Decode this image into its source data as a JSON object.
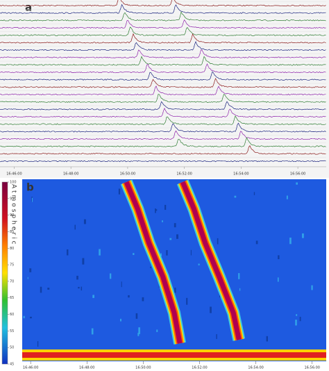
{
  "chart_data": [
    {
      "type": "line",
      "label": "a",
      "xlim": [
        1005.5,
        1017.0
      ],
      "xticks": [
        {
          "value": 1006,
          "label": "16:46:00"
        },
        {
          "value": 1008,
          "label": "16:48:00"
        },
        {
          "value": 1010,
          "label": "16:50:00"
        },
        {
          "value": 1012,
          "label": "16:52:00"
        },
        {
          "value": 1014,
          "label": "16:54:00"
        },
        {
          "value": 1016,
          "label": "16:56:00"
        }
      ],
      "series": [
        {
          "color": "#8b1a1a",
          "peaks": [
            1009.7,
            1011.6
          ]
        },
        {
          "color": "#1a237e",
          "peaks": [
            1009.8,
            1011.7
          ]
        },
        {
          "color": "#2e7d32",
          "peaks": [
            1009.9,
            1011.9
          ]
        },
        {
          "color": "#8e24aa",
          "peaks": [
            1010.0,
            1012.0
          ]
        },
        {
          "color": "#2e7d32",
          "peaks": [
            1010.1,
            1012.1
          ]
        },
        {
          "color": "#8b1a1a",
          "peaks": [
            1010.2,
            1012.3
          ]
        },
        {
          "color": "#1a237e",
          "peaks": [
            1010.3,
            1012.4
          ]
        },
        {
          "color": "#8e24aa",
          "peaks": [
            1010.4,
            1012.6
          ]
        },
        {
          "color": "#2e7d32",
          "peaks": [
            1010.5,
            1012.7
          ]
        },
        {
          "color": "#8e24aa",
          "peaks": [
            1010.7,
            1012.8
          ]
        },
        {
          "color": "#1a237e",
          "peaks": [
            1010.8,
            1013.0
          ]
        },
        {
          "color": "#8b1a1a",
          "peaks": [
            1010.9,
            1013.1
          ]
        },
        {
          "color": "#8e24aa",
          "peaks": [
            1011.0,
            1013.2
          ]
        },
        {
          "color": "#2e7d32",
          "peaks": [
            1011.1,
            1013.4
          ]
        },
        {
          "color": "#1a237e",
          "peaks": [
            1011.2,
            1013.5
          ]
        },
        {
          "color": "#8e24aa",
          "peaks": [
            1011.3,
            1013.6
          ]
        },
        {
          "color": "#2e7d32",
          "peaks": [
            1011.4,
            1013.8
          ]
        },
        {
          "color": "#1a237e",
          "peaks": [
            1011.6,
            1013.9
          ]
        },
        {
          "color": "#8e24aa",
          "peaks": [
            1011.7,
            1014.0
          ]
        },
        {
          "color": "#2e7d32",
          "peaks": [
            1011.8,
            1014.2
          ]
        },
        {
          "color": "#8b1a1a",
          "peaks": [
            null,
            1014.3
          ]
        },
        {
          "color": "#1a237e",
          "peaks": [
            null,
            null
          ]
        }
      ]
    },
    {
      "type": "heatmap",
      "label": "b",
      "xlim": [
        1005.7,
        1016.5
      ],
      "xticks": [
        {
          "value": 1006,
          "label": "16:46:00"
        },
        {
          "value": 1008,
          "label": "16:48:00"
        },
        {
          "value": 1010,
          "label": "16:50:00"
        },
        {
          "value": 1012,
          "label": "16:52:00"
        },
        {
          "value": 1014,
          "label": "16:54:00"
        },
        {
          "value": 1016,
          "label": "16:56:00"
        }
      ],
      "ylim": [
        0,
        100
      ],
      "series": [
        {
          "x": [
            1009.4,
            1009.8,
            1010.2,
            1010.7,
            1011.1,
            1011.3
          ],
          "values": [
            100,
            85,
            66,
            47,
            27,
            10
          ]
        },
        {
          "x": [
            1011.4,
            1011.8,
            1012.2,
            1012.7,
            1013.2,
            1013.4
          ],
          "values": [
            100,
            85,
            66,
            47,
            27,
            12
          ]
        }
      ],
      "colorbar": {
        "label": "Atmospheric",
        "lim": [
          45,
          100
        ],
        "ticks": [
          100,
          95,
          90,
          85,
          80,
          75,
          70,
          65,
          60,
          55,
          50,
          45
        ]
      }
    }
  ]
}
